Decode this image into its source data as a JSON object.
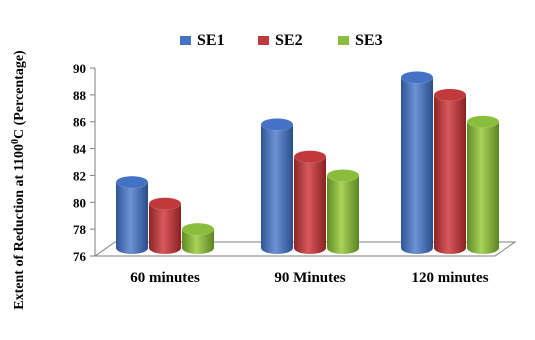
{
  "chart_data": {
    "type": "bar",
    "title": "",
    "xlabel": "",
    "ylabel": {
      "prefix": "Extent of Reduction at 1100",
      "sup": "0",
      "suffix": "C (Percentage)"
    },
    "categories": [
      "60 minutes",
      "90 Minutes",
      "120 minutes"
    ],
    "series": [
      {
        "name": "SE1",
        "values": [
          81.2,
          85.5,
          89.0
        ]
      },
      {
        "name": "SE2",
        "values": [
          79.6,
          83.1,
          87.7
        ]
      },
      {
        "name": "SE3",
        "values": [
          77.7,
          81.7,
          85.7
        ]
      }
    ],
    "ylim": [
      76,
      90
    ],
    "yticks": [
      "76",
      "78",
      "80",
      "82",
      "84",
      "86",
      "88",
      "90"
    ],
    "legend_position": "top",
    "grid": false,
    "three_d": true
  },
  "colors": {
    "SE1": "#4472c4",
    "SE2": "#c0393b",
    "SE3": "#8bbd3c",
    "axis": "#7f7f7f"
  }
}
